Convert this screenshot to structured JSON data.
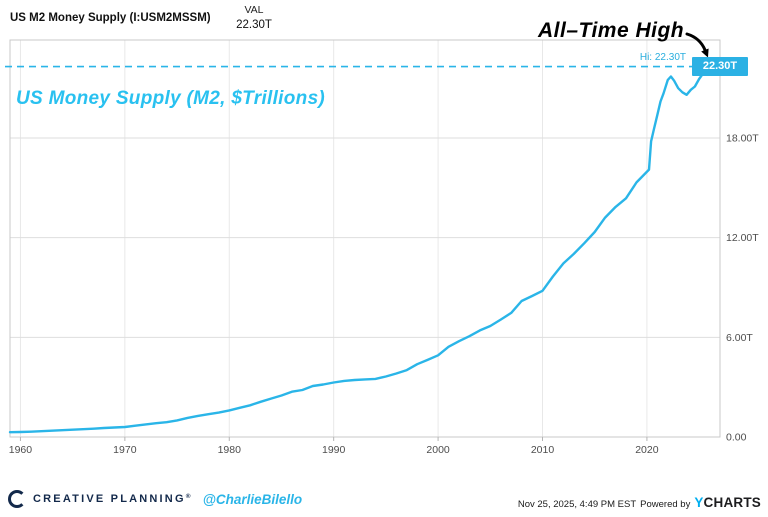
{
  "header": {
    "title": "US M2 Money Supply (I:USM2MSSM)",
    "val_label": "VAL",
    "val_value": "22.30T"
  },
  "annotations": {
    "all_time_high": "All–Time High",
    "note": "US Money Supply (M2, $Trillions)",
    "hi_label": "Hi: 22.30T",
    "last_value_badge": "22.30T"
  },
  "footer": {
    "brand": "CREATIVE PLANNING",
    "registered_mark": "®",
    "handle": "@CharlieBilello",
    "timestamp": "Nov 25, 2025, 4:49 PM EST",
    "powered_by": "Powered by",
    "ycharts_y": "Y",
    "ycharts_charts": "CHARTS"
  },
  "colors": {
    "line": "#2ab5e8",
    "note_text": "#29c1f0",
    "badge_bg": "#2bb1e4",
    "badge_text": "#ffffff",
    "hi_text": "#2aaede",
    "brand_navy": "#13294b",
    "ycharts_cyan": "#00aeef",
    "ycharts_dark": "#1d1d1f",
    "grid": "#dedede",
    "border": "#c9c9c9"
  },
  "chart_data": {
    "type": "line",
    "title": "US M2 Money Supply (I:USM2MSSM)",
    "note": "US Money Supply (M2, $Trillions)",
    "x_range": [
      1959,
      2027
    ],
    "y_range": [
      0,
      23.9
    ],
    "grid": true,
    "legend": false,
    "hi_line_value": 22.3,
    "hi_label": "Hi: 22.30T",
    "x_ticks": [
      {
        "value": 1960,
        "label": "1960"
      },
      {
        "value": 1970,
        "label": "1970"
      },
      {
        "value": 1980,
        "label": "1980"
      },
      {
        "value": 1990,
        "label": "1990"
      },
      {
        "value": 2000,
        "label": "2000"
      },
      {
        "value": 2010,
        "label": "2010"
      },
      {
        "value": 2020,
        "label": "2020"
      }
    ],
    "y_ticks": [
      {
        "value": 0,
        "label": "0.00"
      },
      {
        "value": 6,
        "label": "6.00T"
      },
      {
        "value": 12,
        "label": "12.00T"
      },
      {
        "value": 18,
        "label": "18.00T"
      }
    ],
    "series": [
      {
        "name": "US M2 Money Supply (I:USM2MSSM)",
        "unit": "trillions_usd",
        "points": [
          [
            1959,
            0.29
          ],
          [
            1960,
            0.3
          ],
          [
            1961,
            0.32
          ],
          [
            1962,
            0.35
          ],
          [
            1963,
            0.38
          ],
          [
            1964,
            0.41
          ],
          [
            1965,
            0.44
          ],
          [
            1966,
            0.47
          ],
          [
            1967,
            0.5
          ],
          [
            1968,
            0.54
          ],
          [
            1969,
            0.57
          ],
          [
            1970,
            0.6
          ],
          [
            1971,
            0.68
          ],
          [
            1972,
            0.76
          ],
          [
            1973,
            0.83
          ],
          [
            1974,
            0.89
          ],
          [
            1975,
            1.0
          ],
          [
            1976,
            1.15
          ],
          [
            1977,
            1.27
          ],
          [
            1978,
            1.37
          ],
          [
            1979,
            1.47
          ],
          [
            1980,
            1.6
          ],
          [
            1981,
            1.76
          ],
          [
            1982,
            1.91
          ],
          [
            1983,
            2.12
          ],
          [
            1984,
            2.31
          ],
          [
            1985,
            2.5
          ],
          [
            1986,
            2.73
          ],
          [
            1987,
            2.83
          ],
          [
            1988,
            3.07
          ],
          [
            1989,
            3.16
          ],
          [
            1990,
            3.28
          ],
          [
            1991,
            3.38
          ],
          [
            1992,
            3.43
          ],
          [
            1993,
            3.47
          ],
          [
            1994,
            3.5
          ],
          [
            1995,
            3.64
          ],
          [
            1996,
            3.82
          ],
          [
            1997,
            4.03
          ],
          [
            1998,
            4.38
          ],
          [
            1999,
            4.64
          ],
          [
            2000,
            4.92
          ],
          [
            2001,
            5.43
          ],
          [
            2002,
            5.77
          ],
          [
            2003,
            6.07
          ],
          [
            2004,
            6.42
          ],
          [
            2005,
            6.68
          ],
          [
            2006,
            7.07
          ],
          [
            2007,
            7.47
          ],
          [
            2008,
            8.19
          ],
          [
            2009,
            8.49
          ],
          [
            2010,
            8.8
          ],
          [
            2011,
            9.66
          ],
          [
            2012,
            10.45
          ],
          [
            2013,
            11.02
          ],
          [
            2014,
            11.67
          ],
          [
            2015,
            12.34
          ],
          [
            2016,
            13.21
          ],
          [
            2017,
            13.85
          ],
          [
            2018,
            14.37
          ],
          [
            2019,
            15.33
          ],
          [
            2020.2,
            16.1
          ],
          [
            2020.4,
            17.8
          ],
          [
            2020.7,
            18.6
          ],
          [
            2021.0,
            19.4
          ],
          [
            2021.3,
            20.2
          ],
          [
            2021.6,
            20.7
          ],
          [
            2022.0,
            21.5
          ],
          [
            2022.3,
            21.7
          ],
          [
            2022.6,
            21.45
          ],
          [
            2023.0,
            21.0
          ],
          [
            2023.4,
            20.75
          ],
          [
            2023.8,
            20.6
          ],
          [
            2024.2,
            20.9
          ],
          [
            2024.6,
            21.1
          ],
          [
            2025.0,
            21.55
          ],
          [
            2025.4,
            21.9
          ],
          [
            2025.83,
            22.3
          ]
        ]
      }
    ]
  }
}
